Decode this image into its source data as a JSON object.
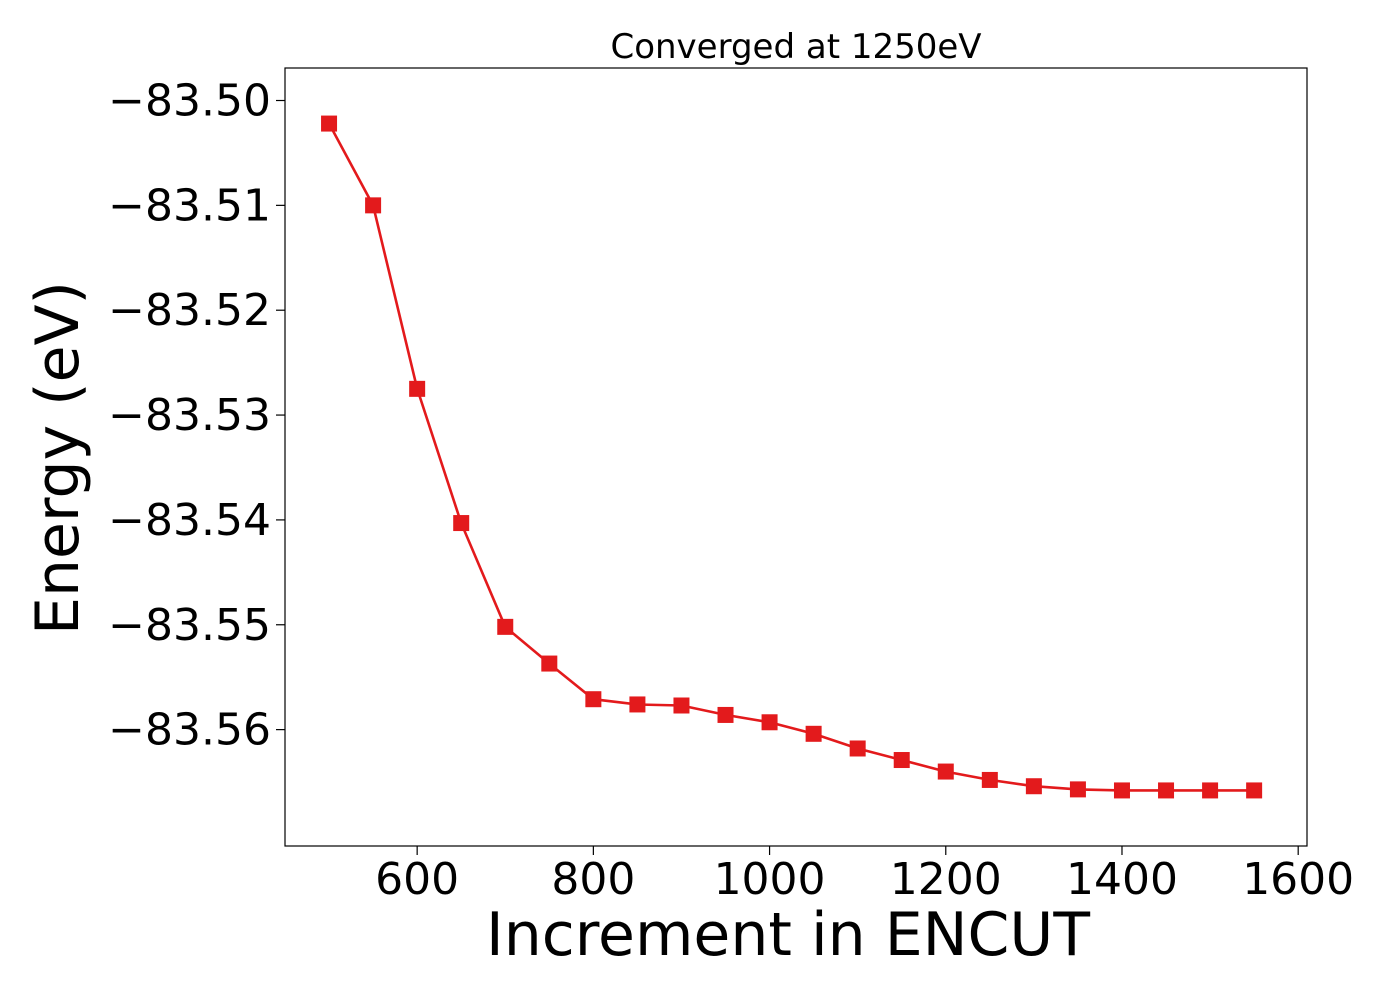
{
  "chart_data": {
    "type": "line",
    "title": "Converged at 1250eV",
    "xlabel": "Increment in ENCUT",
    "ylabel": "Energy (eV)",
    "xlim": [
      450,
      1610
    ],
    "ylim": [
      -83.5711,
      -83.4969
    ],
    "x_ticks": [
      600,
      800,
      1000,
      1200,
      1400,
      1600
    ],
    "y_ticks": [
      -83.5,
      -83.51,
      -83.52,
      -83.53,
      -83.54,
      -83.55,
      -83.56
    ],
    "y_tick_labels": [
      "−83.50",
      "−83.51",
      "−83.52",
      "−83.53",
      "−83.54",
      "−83.55",
      "−83.56"
    ],
    "grid": false,
    "legend": "none",
    "series": [
      {
        "color": "#e31a1c",
        "marker": "square",
        "x": [
          500,
          550,
          600,
          650,
          700,
          750,
          800,
          850,
          900,
          950,
          1000,
          1050,
          1100,
          1150,
          1200,
          1250,
          1300,
          1350,
          1400,
          1450,
          1500,
          1550
        ],
        "y": [
          -83.5022,
          -83.51,
          -83.5275,
          -83.5403,
          -83.5502,
          -83.5537,
          -83.5571,
          -83.5576,
          -83.5577,
          -83.5586,
          -83.5593,
          -83.5604,
          -83.5618,
          -83.5629,
          -83.564,
          -83.5648,
          -83.5654,
          -83.5657,
          -83.5658,
          -83.5658,
          -83.5658,
          -83.5658
        ]
      }
    ]
  }
}
